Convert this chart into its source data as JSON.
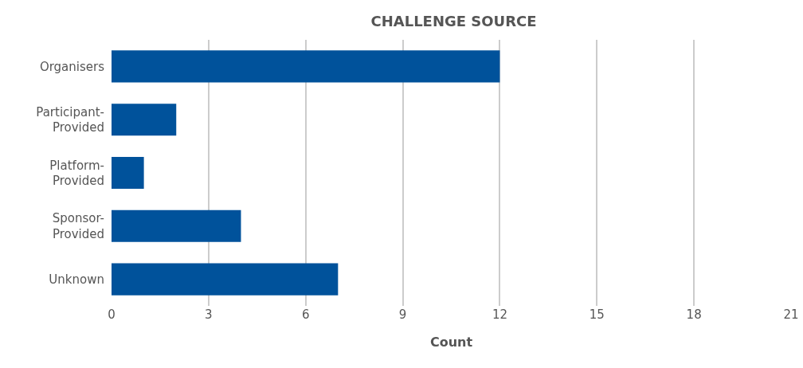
{
  "chart_data": {
    "type": "bar",
    "orientation": "horizontal",
    "title": "CHALLENGE SOURCE",
    "xlabel": "Count",
    "categories": [
      "Organisers",
      "Participant-Provided",
      "Platform-Provided",
      "Sponsor-Provided",
      "Unknown"
    ],
    "values": [
      12,
      2,
      1,
      4,
      7
    ],
    "color": "#00529b",
    "xlim": [
      0,
      21
    ],
    "xticks": [
      0,
      3,
      6,
      9,
      12,
      15,
      18,
      21
    ],
    "grid": "x"
  }
}
